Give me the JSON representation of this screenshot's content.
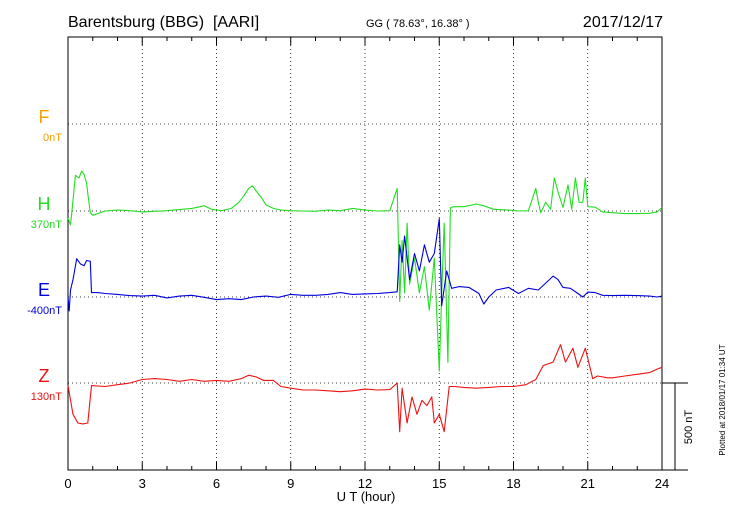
{
  "chart_data": {
    "type": "line",
    "header": {
      "station": "Barentsburg (BBG)  [AARI]",
      "coords": "GG ( 78.63°,  16.38° )",
      "date": "2017/12/17"
    },
    "xlabel": "U T (hour)",
    "xlim": [
      0,
      24
    ],
    "x_ticks": [
      "0",
      "3",
      "6",
      "9",
      "12",
      "15",
      "18",
      "21",
      "24"
    ],
    "scale_bar": {
      "label": "500 nT",
      "value_nT": 500
    },
    "plotted_note": "Plotted at 2018/01/17 01:34 UT",
    "series": [
      {
        "name": "F",
        "baseline_label": "0nT",
        "color": "#f5a000",
        "baseline_nT": 0,
        "points": []
      },
      {
        "name": "H",
        "baseline_label": "370nT",
        "color": "#22dd22",
        "baseline_nT": 370,
        "points": [
          [
            0,
            330
          ],
          [
            0.1,
            290
          ],
          [
            0.2,
            430
          ],
          [
            0.3,
            575
          ],
          [
            0.45,
            560
          ],
          [
            0.55,
            600
          ],
          [
            0.65,
            580
          ],
          [
            0.75,
            530
          ],
          [
            0.8,
            470
          ],
          [
            0.9,
            360
          ],
          [
            1.0,
            345
          ],
          [
            1.5,
            370
          ],
          [
            2.0,
            375
          ],
          [
            2.5,
            372
          ],
          [
            3.0,
            365
          ],
          [
            3.5,
            368
          ],
          [
            4.0,
            372
          ],
          [
            4.5,
            378
          ],
          [
            5.0,
            385
          ],
          [
            5.5,
            400
          ],
          [
            5.8,
            380
          ],
          [
            6.2,
            372
          ],
          [
            6.6,
            385
          ],
          [
            6.9,
            420
          ],
          [
            7.1,
            455
          ],
          [
            7.3,
            500
          ],
          [
            7.45,
            515
          ],
          [
            7.6,
            485
          ],
          [
            7.8,
            450
          ],
          [
            8.0,
            405
          ],
          [
            8.3,
            385
          ],
          [
            8.6,
            375
          ],
          [
            9.0,
            372
          ],
          [
            9.5,
            370
          ],
          [
            10.0,
            368
          ],
          [
            10.5,
            375
          ],
          [
            11.0,
            372
          ],
          [
            11.5,
            385
          ],
          [
            12.0,
            375
          ],
          [
            12.5,
            370
          ],
          [
            13.0,
            372
          ],
          [
            13.3,
            500
          ],
          [
            13.4,
            -150
          ],
          [
            13.5,
            200
          ],
          [
            13.6,
            -100
          ],
          [
            13.7,
            300
          ],
          [
            13.8,
            -50
          ],
          [
            14.0,
            100
          ],
          [
            14.2,
            -100
          ],
          [
            14.4,
            50
          ],
          [
            14.6,
            -200
          ],
          [
            14.8,
            100
          ],
          [
            15.0,
            -550
          ],
          [
            15.1,
            -100
          ],
          [
            15.2,
            300
          ],
          [
            15.35,
            -500
          ],
          [
            15.45,
            390
          ],
          [
            15.6,
            395
          ],
          [
            16.0,
            395
          ],
          [
            16.5,
            410
          ],
          [
            16.8,
            400
          ],
          [
            17.2,
            380
          ],
          [
            17.8,
            375
          ],
          [
            18.2,
            370
          ],
          [
            18.6,
            372
          ],
          [
            18.9,
            500
          ],
          [
            19.0,
            420
          ],
          [
            19.1,
            360
          ],
          [
            19.3,
            420
          ],
          [
            19.5,
            380
          ],
          [
            19.65,
            560
          ],
          [
            19.8,
            480
          ],
          [
            20.0,
            390
          ],
          [
            20.2,
            520
          ],
          [
            20.35,
            380
          ],
          [
            20.5,
            560
          ],
          [
            20.65,
            420
          ],
          [
            20.8,
            420
          ],
          [
            20.9,
            560
          ],
          [
            21.0,
            395
          ],
          [
            21.3,
            392
          ],
          [
            21.6,
            365
          ],
          [
            22.0,
            360
          ],
          [
            22.5,
            355
          ],
          [
            23.0,
            355
          ],
          [
            23.5,
            357
          ],
          [
            23.8,
            365
          ],
          [
            24.0,
            390
          ]
        ]
      },
      {
        "name": "E",
        "baseline_label": "-400nT",
        "color": "#0000dd",
        "baseline_nT": -400,
        "points": [
          [
            0,
            -400
          ],
          [
            0.05,
            -480
          ],
          [
            0.1,
            -360
          ],
          [
            0.2,
            -300
          ],
          [
            0.35,
            -180
          ],
          [
            0.5,
            -210
          ],
          [
            0.65,
            -220
          ],
          [
            0.75,
            -190
          ],
          [
            0.9,
            -195
          ],
          [
            0.95,
            -375
          ],
          [
            1.2,
            -375
          ],
          [
            1.5,
            -380
          ],
          [
            2.0,
            -385
          ],
          [
            2.5,
            -392
          ],
          [
            3.0,
            -395
          ],
          [
            3.5,
            -390
          ],
          [
            4.0,
            -405
          ],
          [
            4.5,
            -395
          ],
          [
            5.0,
            -390
          ],
          [
            5.5,
            -402
          ],
          [
            6.0,
            -415
          ],
          [
            6.5,
            -410
          ],
          [
            7.0,
            -415
          ],
          [
            7.5,
            -400
          ],
          [
            8.0,
            -395
          ],
          [
            8.5,
            -402
          ],
          [
            9.0,
            -385
          ],
          [
            9.5,
            -390
          ],
          [
            10.0,
            -390
          ],
          [
            10.5,
            -385
          ],
          [
            11.0,
            -375
          ],
          [
            11.5,
            -385
          ],
          [
            12.0,
            -382
          ],
          [
            12.5,
            -380
          ],
          [
            13.0,
            -375
          ],
          [
            13.3,
            -370
          ],
          [
            13.4,
            -100
          ],
          [
            13.5,
            -200
          ],
          [
            13.6,
            -50
          ],
          [
            13.8,
            -300
          ],
          [
            14.0,
            -150
          ],
          [
            14.2,
            -250
          ],
          [
            14.4,
            -100
          ],
          [
            14.6,
            -200
          ],
          [
            14.8,
            -150
          ],
          [
            15.0,
            50
          ],
          [
            15.1,
            -450
          ],
          [
            15.3,
            -250
          ],
          [
            15.5,
            -350
          ],
          [
            15.8,
            -340
          ],
          [
            16.2,
            -345
          ],
          [
            16.6,
            -380
          ],
          [
            16.8,
            -440
          ],
          [
            17.0,
            -400
          ],
          [
            17.3,
            -360
          ],
          [
            17.8,
            -345
          ],
          [
            18.2,
            -380
          ],
          [
            18.6,
            -350
          ],
          [
            19.0,
            -360
          ],
          [
            19.3,
            -320
          ],
          [
            19.6,
            -280
          ],
          [
            19.8,
            -300
          ],
          [
            20.0,
            -345
          ],
          [
            20.3,
            -350
          ],
          [
            20.6,
            -380
          ],
          [
            20.8,
            -400
          ],
          [
            21.0,
            -372
          ],
          [
            21.3,
            -375
          ],
          [
            21.6,
            -390
          ],
          [
            22.0,
            -392
          ],
          [
            22.5,
            -390
          ],
          [
            23.0,
            -392
          ],
          [
            23.5,
            -395
          ],
          [
            23.8,
            -400
          ],
          [
            24.0,
            -395
          ]
        ]
      },
      {
        "name": "Z",
        "baseline_label": "130nT",
        "color": "#ee1111",
        "baseline_nT": 130,
        "points": [
          [
            0,
            115
          ],
          [
            0.2,
            -50
          ],
          [
            0.4,
            -100
          ],
          [
            0.6,
            -105
          ],
          [
            0.8,
            -100
          ],
          [
            0.95,
            115
          ],
          [
            1.5,
            110
          ],
          [
            2.0,
            120
          ],
          [
            2.5,
            130
          ],
          [
            3.0,
            150
          ],
          [
            3.5,
            155
          ],
          [
            4.0,
            150
          ],
          [
            4.5,
            140
          ],
          [
            5.0,
            150
          ],
          [
            5.5,
            140
          ],
          [
            6.0,
            145
          ],
          [
            6.5,
            140
          ],
          [
            7.0,
            155
          ],
          [
            7.3,
            175
          ],
          [
            7.6,
            165
          ],
          [
            7.9,
            145
          ],
          [
            8.3,
            145
          ],
          [
            8.6,
            110
          ],
          [
            9.0,
            100
          ],
          [
            9.5,
            90
          ],
          [
            10.0,
            90
          ],
          [
            10.5,
            85
          ],
          [
            11.0,
            80
          ],
          [
            11.5,
            85
          ],
          [
            12.0,
            95
          ],
          [
            12.5,
            90
          ],
          [
            13.0,
            92
          ],
          [
            13.3,
            130
          ],
          [
            13.4,
            -150
          ],
          [
            13.5,
            100
          ],
          [
            13.7,
            -100
          ],
          [
            13.9,
            50
          ],
          [
            14.1,
            -50
          ],
          [
            14.3,
            30
          ],
          [
            14.5,
            0
          ],
          [
            14.7,
            50
          ],
          [
            14.8,
            -100
          ],
          [
            15.0,
            -50
          ],
          [
            15.2,
            -150
          ],
          [
            15.4,
            110
          ],
          [
            15.6,
            110
          ],
          [
            16.0,
            105
          ],
          [
            16.5,
            100
          ],
          [
            17.0,
            105
          ],
          [
            17.5,
            110
          ],
          [
            18.0,
            110
          ],
          [
            18.5,
            120
          ],
          [
            18.9,
            150
          ],
          [
            19.2,
            230
          ],
          [
            19.6,
            250
          ],
          [
            19.9,
            350
          ],
          [
            20.1,
            250
          ],
          [
            20.4,
            330
          ],
          [
            20.6,
            220
          ],
          [
            20.9,
            330
          ],
          [
            21.2,
            155
          ],
          [
            21.4,
            170
          ],
          [
            21.8,
            160
          ],
          [
            22.0,
            160
          ],
          [
            22.5,
            170
          ],
          [
            23.0,
            180
          ],
          [
            23.5,
            190
          ],
          [
            23.8,
            210
          ],
          [
            24.0,
            220
          ]
        ]
      }
    ]
  }
}
